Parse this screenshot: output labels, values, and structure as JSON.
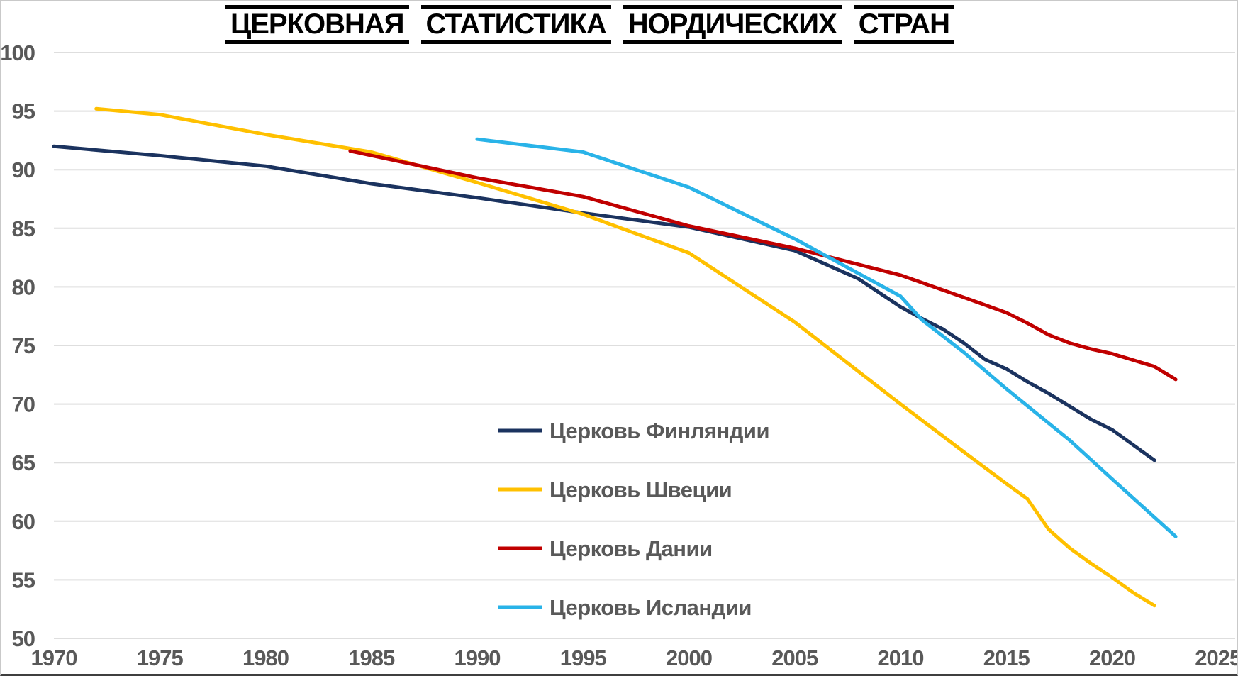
{
  "title": "ЦЕРКОВНАЯ СТАТИСТИКА НОРДИЧЕСКИХ СТРАН",
  "colors": {
    "background": "#ffffff",
    "gridline": "#dedede",
    "tick_label": "#595959",
    "legend_text": "#595959",
    "title_text": "#000000",
    "frame_border": "#c9c9c9",
    "frame_bottom_border": "#3f3f3f",
    "finland_line": "#1b335f",
    "sweden_line": "#ffc000",
    "denmark_line": "#c00000",
    "iceland_line": "#29b3e8"
  },
  "chart_data": {
    "type": "line",
    "title": "ЦЕРКОВНАЯ СТАТИСТИКА НОРДИЧЕСКИХ СТРАН",
    "xlabel": "",
    "ylabel": "",
    "x_range": [
      1970,
      2025
    ],
    "y_range": [
      50,
      100
    ],
    "x_ticks": [
      1970,
      1975,
      1980,
      1985,
      1990,
      1995,
      2000,
      2005,
      2010,
      2015,
      2020,
      2025
    ],
    "y_ticks": [
      50,
      55,
      60,
      65,
      70,
      75,
      80,
      85,
      90,
      95,
      100
    ],
    "grid": "horizontal",
    "legend_position": "inside-middle-right",
    "series": [
      {
        "name": "Церковь Финляндии",
        "color": "#1b335f",
        "points": [
          [
            1970,
            92.0
          ],
          [
            1975,
            91.2
          ],
          [
            1980,
            90.3
          ],
          [
            1985,
            88.8
          ],
          [
            1990,
            87.6
          ],
          [
            1995,
            86.3
          ],
          [
            2000,
            85.1
          ],
          [
            2005,
            83.1
          ],
          [
            2008,
            80.7
          ],
          [
            2010,
            78.3
          ],
          [
            2011,
            77.3
          ],
          [
            2012,
            76.4
          ],
          [
            2013,
            75.2
          ],
          [
            2014,
            73.8
          ],
          [
            2015,
            73.0
          ],
          [
            2016,
            71.9
          ],
          [
            2017,
            70.9
          ],
          [
            2018,
            69.8
          ],
          [
            2019,
            68.7
          ],
          [
            2020,
            67.8
          ],
          [
            2021,
            66.5
          ],
          [
            2022,
            65.2
          ]
        ]
      },
      {
        "name": "Церковь Швеции",
        "color": "#ffc000",
        "points": [
          [
            1972,
            95.2
          ],
          [
            1975,
            94.7
          ],
          [
            1980,
            93.0
          ],
          [
            1985,
            91.5
          ],
          [
            1990,
            88.9
          ],
          [
            1995,
            86.2
          ],
          [
            2000,
            82.9
          ],
          [
            2005,
            77.0
          ],
          [
            2010,
            70.0
          ],
          [
            2013,
            65.9
          ],
          [
            2015,
            63.2
          ],
          [
            2016,
            61.9
          ],
          [
            2017,
            59.3
          ],
          [
            2018,
            57.7
          ],
          [
            2019,
            56.4
          ],
          [
            2020,
            55.2
          ],
          [
            2021,
            53.9
          ],
          [
            2022,
            52.8
          ]
        ]
      },
      {
        "name": "Церковь Дании",
        "color": "#c00000",
        "points": [
          [
            1984,
            91.6
          ],
          [
            1990,
            89.3
          ],
          [
            1995,
            87.7
          ],
          [
            2000,
            85.2
          ],
          [
            2005,
            83.3
          ],
          [
            2010,
            81.0
          ],
          [
            2013,
            79.1
          ],
          [
            2015,
            77.8
          ],
          [
            2016,
            76.9
          ],
          [
            2017,
            75.9
          ],
          [
            2018,
            75.2
          ],
          [
            2019,
            74.7
          ],
          [
            2020,
            74.3
          ],
          [
            2022,
            73.2
          ],
          [
            2023,
            72.1
          ]
        ]
      },
      {
        "name": "Церковь Исландии",
        "color": "#29b3e8",
        "points": [
          [
            1990,
            92.6
          ],
          [
            1995,
            91.5
          ],
          [
            2000,
            88.5
          ],
          [
            2005,
            84.1
          ],
          [
            2010,
            79.2
          ],
          [
            2011,
            77.2
          ],
          [
            2013,
            74.4
          ],
          [
            2015,
            71.3
          ],
          [
            2018,
            66.9
          ],
          [
            2020,
            63.6
          ],
          [
            2023,
            58.7
          ]
        ]
      }
    ]
  }
}
